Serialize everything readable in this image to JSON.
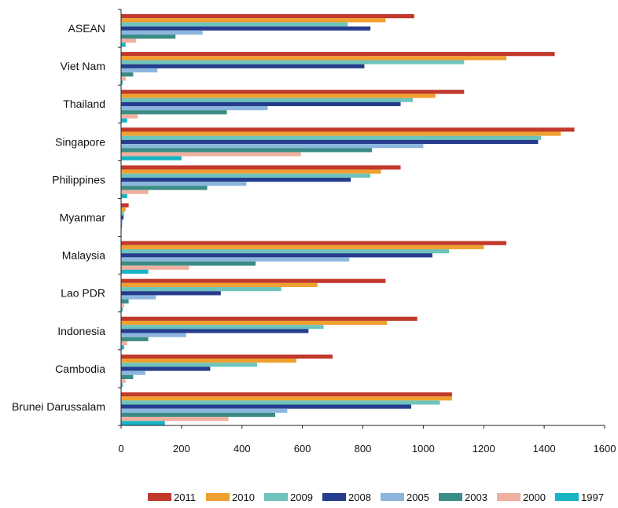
{
  "chart_data": {
    "type": "bar",
    "orientation": "horizontal",
    "categories": [
      "ASEAN",
      "Viet Nam",
      "Thailand",
      "Singapore",
      "Philippines",
      "Myanmar",
      "Malaysia",
      "Lao PDR",
      "Indonesia",
      "Cambodia",
      "Brunei Darussalam"
    ],
    "xlim": [
      0,
      1600
    ],
    "xticks": [
      0,
      200,
      400,
      600,
      800,
      1000,
      1200,
      1400,
      1600
    ],
    "grid": false,
    "legend_position": "bottom",
    "series": [
      {
        "name": "2011",
        "color": "#C0392B",
        "values": [
          970,
          1435,
          1135,
          1500,
          925,
          25,
          1275,
          875,
          980,
          700,
          1095
        ]
      },
      {
        "name": "2010",
        "color": "#F0A030",
        "values": [
          875,
          1275,
          1040,
          1455,
          860,
          15,
          1200,
          650,
          880,
          580,
          1095
        ]
      },
      {
        "name": "2009",
        "color": "#6EC4BC",
        "values": [
          750,
          1135,
          965,
          1390,
          825,
          10,
          1085,
          530,
          670,
          450,
          1055
        ]
      },
      {
        "name": "2008",
        "color": "#253D8C",
        "values": [
          825,
          805,
          925,
          1380,
          760,
          8,
          1030,
          330,
          620,
          295,
          960
        ]
      },
      {
        "name": "2005",
        "color": "#8CB6DE",
        "values": [
          270,
          120,
          485,
          1000,
          415,
          5,
          755,
          115,
          215,
          80,
          550
        ]
      },
      {
        "name": "2003",
        "color": "#3A8C84",
        "values": [
          180,
          40,
          350,
          830,
          285,
          3,
          445,
          25,
          90,
          40,
          510
        ]
      },
      {
        "name": "2000",
        "color": "#F0B0A0",
        "values": [
          50,
          15,
          55,
          595,
          90,
          2,
          225,
          10,
          20,
          15,
          355
        ]
      },
      {
        "name": "1997",
        "color": "#18B4C4",
        "values": [
          15,
          5,
          20,
          200,
          20,
          1,
          90,
          5,
          10,
          5,
          145
        ]
      }
    ]
  }
}
